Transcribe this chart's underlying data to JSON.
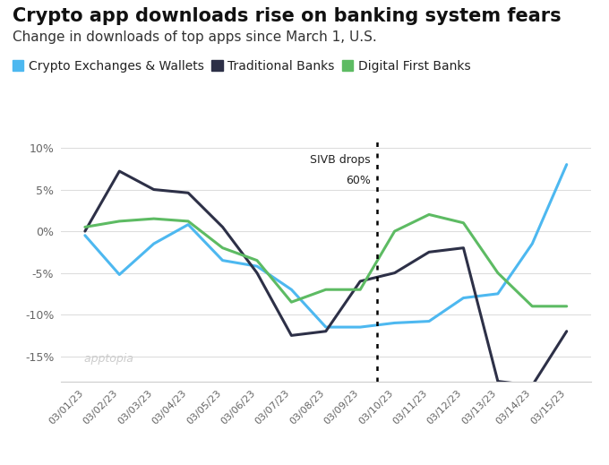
{
  "title": "Crypto app downloads rise on banking system fears",
  "subtitle": "Change in downloads of top apps since March 1, U.S.",
  "ylim": [
    -18,
    11
  ],
  "yticks": [
    -15,
    -10,
    -5,
    0,
    5,
    10
  ],
  "ytick_labels": [
    "-15%",
    "-10%",
    "-5%",
    "0%",
    "5%",
    "10%"
  ],
  "dates": [
    "03/01/23",
    "03/02/23",
    "03/03/23",
    "03/04/23",
    "03/05/23",
    "03/06/23",
    "03/07/23",
    "03/08/23",
    "03/09/23",
    "03/10/23",
    "03/11/23",
    "03/12/23",
    "03/13/23",
    "03/14/23",
    "03/15/23"
  ],
  "crypto": [
    -0.5,
    -5.2,
    -1.5,
    0.8,
    -3.5,
    -4.2,
    -7.0,
    -11.5,
    -11.5,
    -11.0,
    -10.8,
    -8.0,
    -7.5,
    -1.5,
    8.0
  ],
  "trad_banks": [
    0.0,
    7.2,
    5.0,
    4.6,
    0.5,
    -5.0,
    -12.5,
    -12.0,
    -6.0,
    -5.0,
    -2.5,
    -2.0,
    -18.0,
    -18.5,
    -12.0
  ],
  "digital_banks": [
    0.5,
    1.2,
    1.5,
    1.2,
    -2.0,
    -3.5,
    -8.5,
    -7.0,
    -7.0,
    0.0,
    2.0,
    1.0,
    -5.0,
    -9.0,
    -9.0
  ],
  "crypto_color": "#4db8f0",
  "trad_color": "#2d3047",
  "digital_color": "#5dbb63",
  "vline_idx": 8.5,
  "vline_label1": "SIVB drops",
  "vline_label2": "60%",
  "legend_labels": [
    "Crypto Exchanges & Wallets",
    "Traditional Banks",
    "Digital First Banks"
  ],
  "background_color": "#ffffff",
  "grid_color": "#dddddd",
  "title_fontsize": 15,
  "subtitle_fontsize": 11,
  "tick_fontsize": 9,
  "legend_fontsize": 10,
  "apptopia_text": "apptopia"
}
